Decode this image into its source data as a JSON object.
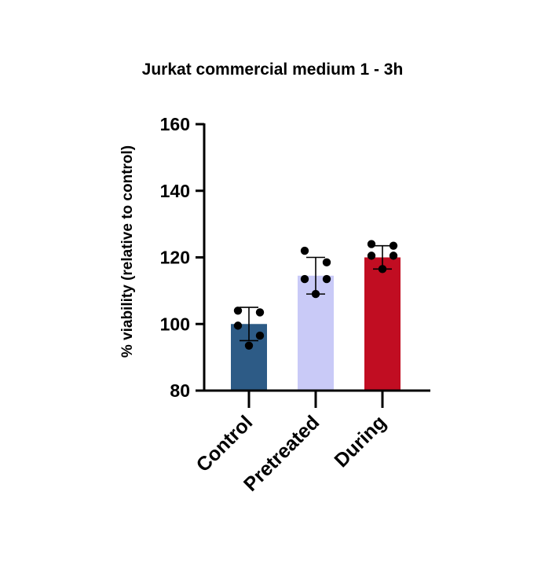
{
  "chart_data": {
    "type": "bar",
    "title": "Jurkat commercial medium 1 - 3h",
    "xlabel": "",
    "ylabel": "% viability (relative to control)",
    "ylim": [
      80,
      160
    ],
    "yticks": [
      80,
      100,
      120,
      140,
      160
    ],
    "categories": [
      "Control",
      "Pretreated",
      "During"
    ],
    "values": [
      100,
      114.5,
      120
    ],
    "error": [
      5,
      5.5,
      3.5
    ],
    "colors": [
      "#2d5b86",
      "#c9caf7",
      "#c10d22"
    ],
    "points": [
      [
        104,
        103.5,
        99.5,
        96.5,
        93.5
      ],
      [
        122,
        118.5,
        113.5,
        113.5,
        109
      ],
      [
        124,
        123.5,
        120.5,
        120.5,
        116.5
      ]
    ],
    "grid": false,
    "legend": "none"
  }
}
